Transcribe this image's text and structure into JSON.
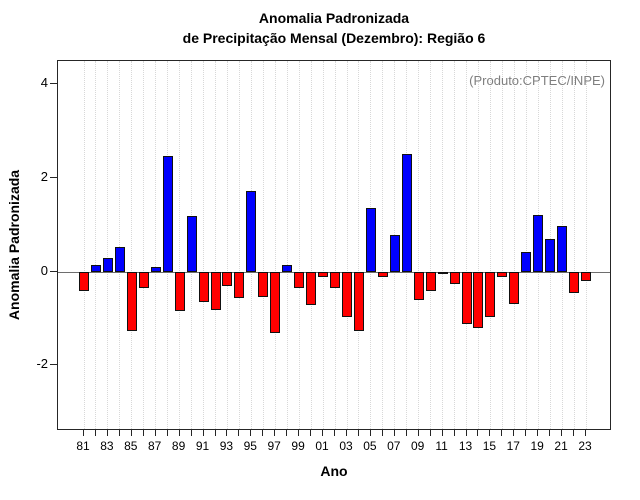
{
  "chart": {
    "title_line1": "Anomalia Padronizada",
    "title_line2": "de Precipitação Mensal (Dezembro): Região 6",
    "annotation": "(Produto:CPTEC/INPE)",
    "ylabel": "Anomalia Padronizada",
    "xlabel": "Ano"
  },
  "chart_data": {
    "type": "bar",
    "title": "Anomalia Padronizada de Precipitação Mensal (Dezembro): Região 6",
    "annotation": "(Produto:CPTEC/INPE)",
    "xlabel": "Ano",
    "ylabel": "Anomalia Padronizada",
    "categories": [
      "81",
      "82",
      "83",
      "84",
      "85",
      "86",
      "87",
      "88",
      "89",
      "90",
      "91",
      "92",
      "93",
      "94",
      "95",
      "96",
      "97",
      "98",
      "99",
      "00",
      "01",
      "02",
      "03",
      "04",
      "05",
      "06",
      "07",
      "08",
      "09",
      "10",
      "11",
      "12",
      "13",
      "14",
      "15",
      "16",
      "17",
      "18",
      "19",
      "20",
      "21",
      "22",
      "23"
    ],
    "values": [
      -0.41,
      0.15,
      0.3,
      0.53,
      -1.27,
      -0.34,
      0.1,
      2.47,
      -0.83,
      1.19,
      -0.65,
      -0.82,
      -0.31,
      -0.57,
      1.72,
      -0.54,
      -1.31,
      0.15,
      -0.34,
      -0.7,
      -0.11,
      -0.34,
      -0.97,
      -1.27,
      1.37,
      -0.11,
      0.78,
      2.51,
      -0.6,
      -0.42,
      -0.03,
      -0.27,
      -1.12,
      -1.21,
      -0.97,
      -0.12,
      -0.69,
      0.42,
      1.22,
      0.69,
      0.98,
      -0.45,
      -0.19
    ],
    "ylim": [
      -3.4,
      4.5
    ],
    "yticks": [
      4,
      2,
      0,
      -2
    ],
    "x_tick_label_every": 2,
    "grid": "vertical-dotted",
    "legend": "none",
    "colors": {
      "positive_bar": "#0000ff",
      "negative_bar": "#ff0000",
      "bar_border": "#111111",
      "zero_line": "#6e6e6e",
      "gridline": "#d8d8d8",
      "annotation_text": "#7f7f7f",
      "axis": "#262626"
    }
  }
}
